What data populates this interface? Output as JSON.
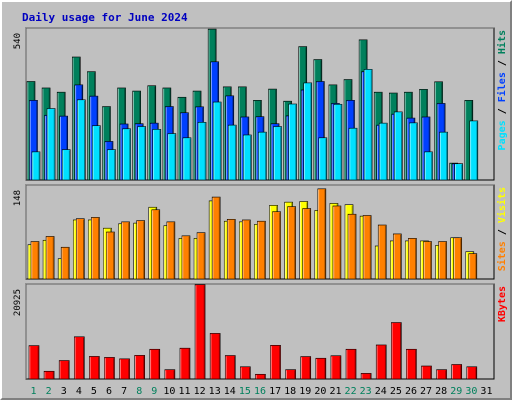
{
  "title": "Daily usage for June 2024",
  "colors": {
    "title": "#0000c0",
    "hits": "#00805c",
    "files": "#0040ff",
    "pages": "#00e0ff",
    "visits": "#ffff00",
    "sites": "#ff8000",
    "kbytes": "#ff0000",
    "weekend_day": "#00805c",
    "weekday_day": "#000000",
    "plot_bg": "#c0c0c0"
  },
  "chart_data": [
    {
      "type": "bar",
      "name": "hits-files-pages",
      "ymax_label": "540",
      "ylim": [
        0,
        540
      ],
      "legend": [
        "Pages",
        "Files",
        "Hits"
      ],
      "categories": [
        "1",
        "2",
        "3",
        "4",
        "5",
        "6",
        "7",
        "8",
        "9",
        "10",
        "11",
        "12",
        "13",
        "14",
        "15",
        "16",
        "17",
        "18",
        "19",
        "20",
        "21",
        "22",
        "23",
        "24",
        "25",
        "26",
        "27",
        "28",
        "29",
        "30",
        "31"
      ],
      "series": [
        {
          "name": "Hits",
          "color_key": "hits",
          "values": [
            350,
            327,
            312,
            437,
            385,
            261,
            327,
            316,
            335,
            327,
            294,
            316,
            536,
            331,
            331,
            283,
            323,
            280,
            474,
            428,
            338,
            357,
            498,
            312,
            309,
            312,
            322,
            349,
            60,
            283,
            0
          ]
        },
        {
          "name": "Files",
          "color_key": "files",
          "values": [
            283,
            230,
            227,
            338,
            298,
            137,
            199,
            200,
            202,
            261,
            239,
            260,
            420,
            299,
            224,
            225,
            200,
            228,
            320,
            350,
            272,
            283,
            385,
            195,
            234,
            220,
            224,
            272,
            58,
            0,
            0
          ]
        },
        {
          "name": "Pages",
          "color_key": "pages",
          "values": [
            100,
            254,
            108,
            285,
            193,
            108,
            182,
            190,
            180,
            165,
            150,
            205,
            277,
            195,
            160,
            170,
            190,
            270,
            345,
            150,
            269,
            184,
            393,
            202,
            242,
            203,
            100,
            170,
            58,
            210,
            0
          ]
        }
      ]
    },
    {
      "type": "bar",
      "name": "visits-sites",
      "ymax_label": "148",
      "ylim": [
        0,
        148
      ],
      "legend": [
        "Sites",
        "Visits"
      ],
      "categories": [
        "1",
        "2",
        "3",
        "4",
        "5",
        "6",
        "7",
        "8",
        "9",
        "10",
        "11",
        "12",
        "13",
        "14",
        "15",
        "16",
        "17",
        "18",
        "19",
        "20",
        "21",
        "22",
        "23",
        "24",
        "25",
        "26",
        "27",
        "28",
        "29",
        "30",
        "31"
      ],
      "series": [
        {
          "name": "Visits",
          "color_key": "visits",
          "values": [
            54,
            61,
            32,
            93,
            93,
            80,
            87,
            88,
            113,
            84,
            64,
            64,
            123,
            91,
            90,
            86,
            116,
            121,
            122,
            108,
            119,
            117,
            99,
            52,
            60,
            60,
            60,
            53,
            65,
            43,
            0
          ]
        },
        {
          "name": "Sites",
          "color_key": "sites",
          "values": [
            59,
            67,
            50,
            95,
            97,
            74,
            90,
            92,
            109,
            90,
            68,
            73,
            129,
            94,
            93,
            91,
            106,
            114,
            111,
            142,
            115,
            102,
            100,
            85,
            71,
            64,
            59,
            59,
            65,
            40,
            0
          ]
        }
      ]
    },
    {
      "type": "bar",
      "name": "kbytes",
      "ymax_label": "20925",
      "ylim": [
        0,
        20925
      ],
      "legend": [
        "KBytes"
      ],
      "categories": [
        "1",
        "2",
        "3",
        "4",
        "5",
        "6",
        "7",
        "8",
        "9",
        "10",
        "11",
        "12",
        "13",
        "14",
        "15",
        "16",
        "17",
        "18",
        "19",
        "20",
        "21",
        "22",
        "23",
        "24",
        "25",
        "26",
        "27",
        "28",
        "29",
        "30",
        "31"
      ],
      "series": [
        {
          "name": "KBytes",
          "color_key": "kbytes",
          "values": [
            7355,
            1705,
            4069,
            9301,
            4972,
            4756,
            4441,
            5207,
            6553,
            2063,
            6788,
            20794,
            10043,
            5172,
            2697,
            1039,
            7417,
            2063,
            4945,
            4572,
            5128,
            6553,
            1239,
            7500,
            12437,
            6553,
            2863,
            2063,
            3196,
            2697,
            0
          ]
        }
      ]
    }
  ],
  "weekend_days": [
    "1",
    "2",
    "8",
    "9",
    "15",
    "16",
    "22",
    "23",
    "29",
    "30"
  ]
}
